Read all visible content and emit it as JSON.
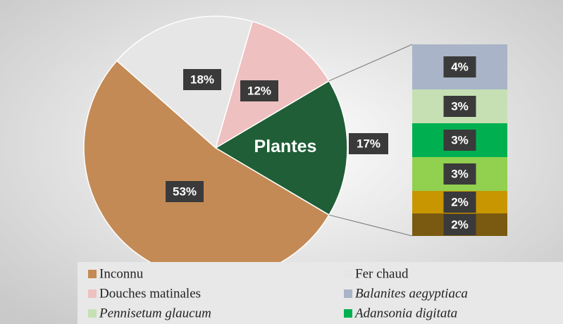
{
  "chart_data": {
    "type": "pie_of_bar",
    "categories": [
      "Inconnu",
      "Fer chaud",
      "Douches matinales",
      "Plantes"
    ],
    "values": [
      53,
      18,
      12,
      17
    ],
    "value_labels": [
      "53%",
      "18%",
      "12%",
      "17%"
    ],
    "colors": [
      "#c38a55",
      "#e6e6e6",
      "#efc0c0",
      "#1f5e36"
    ],
    "bar": {
      "categories": [
        "Balanites aegyptiaca",
        "Pennisetum glaucum",
        "Adansonia digitata",
        null,
        null,
        null
      ],
      "values": [
        4,
        3,
        3,
        3,
        2,
        2
      ],
      "value_labels": [
        "4%",
        "3%",
        "3%",
        "3%",
        "2%",
        "2%"
      ],
      "colors": [
        "#a9b4c8",
        "#c6e0b4",
        "#00b050",
        "#92d050",
        "#c89600",
        "#7a5a10"
      ]
    }
  }
}
